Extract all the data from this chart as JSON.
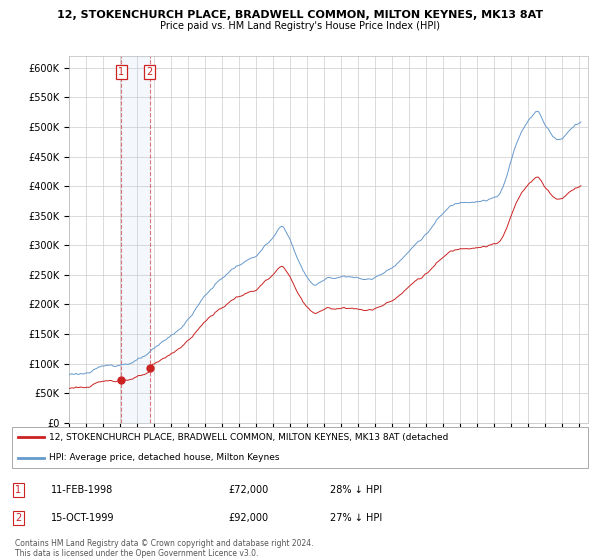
{
  "title": "12, STOKENCHURCH PLACE, BRADWELL COMMON, MILTON KEYNES, MK13 8AT",
  "subtitle": "Price paid vs. HM Land Registry's House Price Index (HPI)",
  "hpi_color": "#6699cc",
  "price_color": "#cc2222",
  "annotation_box_color": "#cc2222",
  "background_color": "#ffffff",
  "grid_color": "#cccccc",
  "ylim": [
    0,
    620000
  ],
  "yticks": [
    0,
    50000,
    100000,
    150000,
    200000,
    250000,
    300000,
    350000,
    400000,
    450000,
    500000,
    550000,
    600000
  ],
  "ytick_labels": [
    "£0",
    "£50K",
    "£100K",
    "£150K",
    "£200K",
    "£250K",
    "£300K",
    "£350K",
    "£400K",
    "£450K",
    "£500K",
    "£550K",
    "£600K"
  ],
  "sale1_year": 1998.0833,
  "sale1_price": 72000,
  "sale2_year": 1999.75,
  "sale2_price": 92000,
  "legend_line1": "12, STOKENCHURCH PLACE, BRADWELL COMMON, MILTON KEYNES, MK13 8AT (detached",
  "legend_line2": "HPI: Average price, detached house, Milton Keynes",
  "footer1": "Contains HM Land Registry data © Crown copyright and database right 2024.",
  "footer2": "This data is licensed under the Open Government Licence v3.0.",
  "table_row1": [
    "1",
    "11-FEB-1998",
    "£72,000",
    "28% ↓ HPI"
  ],
  "table_row2": [
    "2",
    "15-OCT-1999",
    "£92,000",
    "27% ↓ HPI"
  ],
  "xlim_start": 1995.0,
  "xlim_end": 2025.5
}
